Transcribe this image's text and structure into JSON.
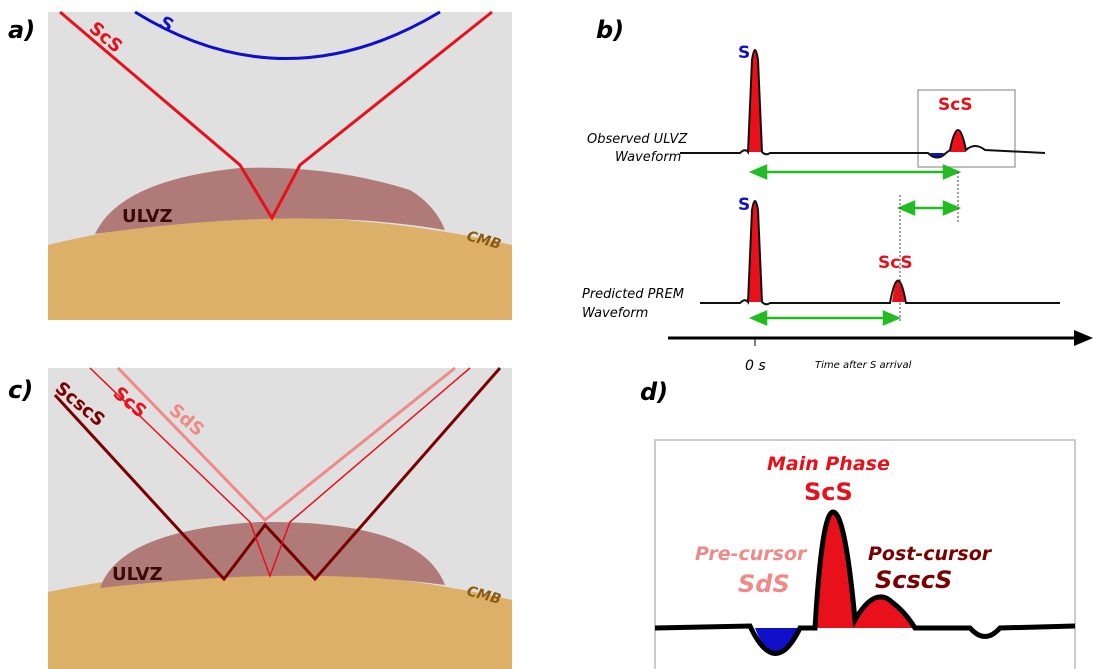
{
  "panel_a": {
    "label": "a)",
    "rays": [
      "S",
      "ScS"
    ],
    "zone": "ULVZ",
    "boundary": "CMB"
  },
  "panel_b": {
    "label": "b)",
    "observed": {
      "phases": [
        "S",
        "ScS"
      ],
      "caption": [
        "Observed ULVZ",
        "Waveform"
      ]
    },
    "predicted": {
      "phases": [
        "S",
        "ScS"
      ],
      "caption": [
        "Predicted PREM",
        "Waveform"
      ]
    },
    "axis": {
      "origin": "0 s",
      "label": "Time after S arrival"
    }
  },
  "panel_c": {
    "label": "c)",
    "rays": [
      "ScscS",
      "ScS",
      "SdS"
    ],
    "zone": "ULVZ",
    "boundary": "CMB"
  },
  "panel_d": {
    "label": "d)",
    "main": {
      "title": "Main Phase",
      "phase": "ScS"
    },
    "pre": {
      "title": "Pre-cursor",
      "phase": "SdS"
    },
    "post": {
      "title": "Post-cursor",
      "phase": "ScscS"
    }
  }
}
